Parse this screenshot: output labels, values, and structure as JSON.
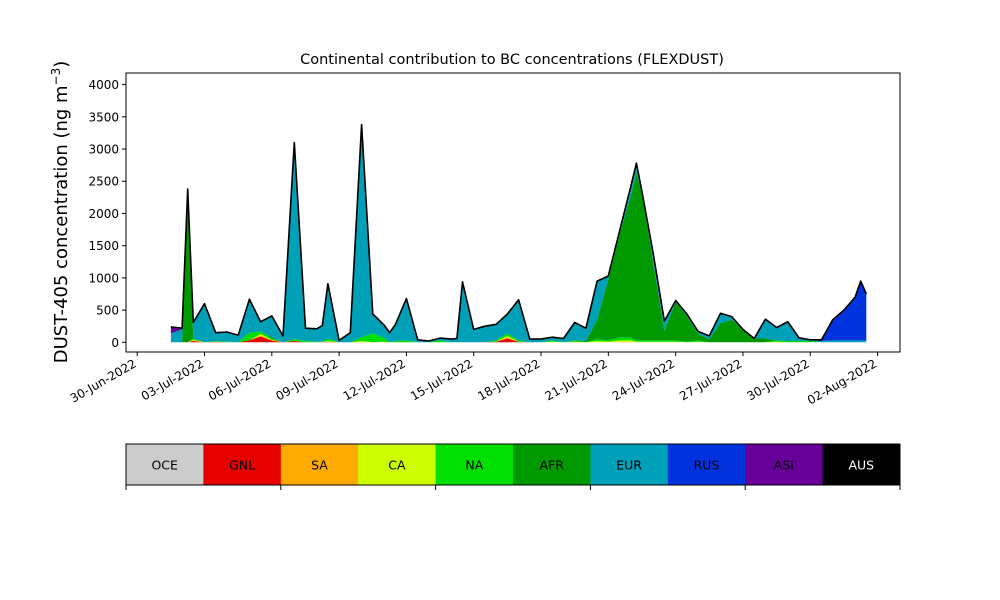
{
  "chart_data": {
    "type": "area",
    "title": "Continental contribution to BC concentrations (FLEXDUST)",
    "ylabel": "DUST-405 concentration (ng m",
    "ylabel_unit_exp": "−3",
    "ylabel_close": ")",
    "ylim": [
      -150,
      4180
    ],
    "yticks": [
      0,
      500,
      1000,
      1500,
      2000,
      2500,
      3000,
      3500,
      4000
    ],
    "xlim": [
      "2022-06-29T12:00",
      "2022-08-03T00:00"
    ],
    "xticks": [
      "30-Jun-2022",
      "03-Jul-2022",
      "06-Jul-2022",
      "09-Jul-2022",
      "12-Jul-2022",
      "15-Jul-2022",
      "18-Jul-2022",
      "21-Jul-2022",
      "24-Jul-2022",
      "27-Jul-2022",
      "30-Jul-2022",
      "02-Aug-2022"
    ],
    "xtick_dates": [
      "2022-06-30",
      "2022-07-03",
      "2022-07-06",
      "2022-07-09",
      "2022-07-12",
      "2022-07-15",
      "2022-07-18",
      "2022-07-21",
      "2022-07-24",
      "2022-07-27",
      "2022-07-30",
      "2022-08-02"
    ],
    "grid": false,
    "legend_position": "colorbar below chart",
    "x": [
      "2022-07-01T12:00",
      "2022-07-02T00:00",
      "2022-07-02T06:00",
      "2022-07-02T12:00",
      "2022-07-03T00:00",
      "2022-07-03T12:00",
      "2022-07-04T00:00",
      "2022-07-04T12:00",
      "2022-07-05T00:00",
      "2022-07-05T12:00",
      "2022-07-06T00:00",
      "2022-07-06T12:00",
      "2022-07-07T00:00",
      "2022-07-07T12:00",
      "2022-07-08T00:00",
      "2022-07-08T06:00",
      "2022-07-08T12:00",
      "2022-07-09T00:00",
      "2022-07-09T12:00",
      "2022-07-10T00:00",
      "2022-07-10T12:00",
      "2022-07-11T00:00",
      "2022-07-11T06:00",
      "2022-07-11T12:00",
      "2022-07-12T00:00",
      "2022-07-12T12:00",
      "2022-07-13T00:00",
      "2022-07-13T12:00",
      "2022-07-14T00:00",
      "2022-07-14T06:00",
      "2022-07-14T12:00",
      "2022-07-15T00:00",
      "2022-07-15T12:00",
      "2022-07-16T00:00",
      "2022-07-16T12:00",
      "2022-07-17T00:00",
      "2022-07-17T12:00",
      "2022-07-18T00:00",
      "2022-07-18T12:00",
      "2022-07-19T00:00",
      "2022-07-19T12:00",
      "2022-07-20T00:00",
      "2022-07-20T12:00",
      "2022-07-21T00:00",
      "2022-07-21T12:00",
      "2022-07-22T00:00",
      "2022-07-22T06:00",
      "2022-07-22T12:00",
      "2022-07-23T00:00",
      "2022-07-23T12:00",
      "2022-07-24T00:00",
      "2022-07-24T12:00",
      "2022-07-25T00:00",
      "2022-07-25T12:00",
      "2022-07-26T00:00",
      "2022-07-26T12:00",
      "2022-07-27T00:00",
      "2022-07-27T12:00",
      "2022-07-28T00:00",
      "2022-07-28T12:00",
      "2022-07-29T00:00",
      "2022-07-29T12:00",
      "2022-07-30T00:00",
      "2022-07-30T12:00",
      "2022-07-31T00:00",
      "2022-07-31T12:00",
      "2022-08-01T00:00",
      "2022-08-01T06:00",
      "2022-08-01T12:00"
    ],
    "series": [
      {
        "name": "OCE",
        "color": "#cccccc",
        "values": [
          0,
          0,
          0,
          0,
          0,
          0,
          0,
          0,
          0,
          0,
          0,
          0,
          0,
          0,
          0,
          0,
          0,
          0,
          0,
          0,
          0,
          0,
          0,
          0,
          0,
          0,
          0,
          0,
          0,
          0,
          0,
          0,
          0,
          0,
          0,
          0,
          0,
          0,
          0,
          0,
          0,
          0,
          0,
          0,
          0,
          0,
          0,
          0,
          0,
          0,
          0,
          0,
          0,
          0,
          0,
          0,
          0,
          0,
          0,
          0,
          0,
          0,
          0,
          0,
          0,
          0,
          0,
          0,
          0
        ]
      },
      {
        "name": "GNL",
        "color": "#e60000",
        "values": [
          0,
          0,
          0,
          20,
          0,
          10,
          0,
          0,
          30,
          90,
          30,
          0,
          20,
          0,
          0,
          0,
          10,
          0,
          0,
          0,
          0,
          0,
          0,
          0,
          0,
          0,
          0,
          0,
          0,
          0,
          0,
          0,
          0,
          10,
          60,
          10,
          0,
          0,
          0,
          0,
          0,
          0,
          0,
          0,
          0,
          0,
          0,
          0,
          0,
          0,
          0,
          0,
          0,
          0,
          0,
          0,
          0,
          0,
          0,
          0,
          0,
          0,
          0,
          0,
          0,
          0,
          0,
          0,
          0
        ]
      },
      {
        "name": "SA",
        "color": "#ffaa00",
        "values": [
          0,
          0,
          0,
          10,
          0,
          0,
          0,
          0,
          0,
          20,
          0,
          0,
          0,
          0,
          0,
          0,
          0,
          0,
          0,
          0,
          0,
          0,
          0,
          0,
          0,
          0,
          0,
          0,
          0,
          0,
          0,
          0,
          0,
          0,
          20,
          0,
          0,
          0,
          0,
          0,
          0,
          0,
          0,
          0,
          10,
          10,
          0,
          0,
          0,
          0,
          0,
          0,
          0,
          0,
          0,
          0,
          0,
          0,
          0,
          0,
          0,
          0,
          0,
          0,
          0,
          0,
          0,
          0,
          0
        ]
      },
      {
        "name": "CA",
        "color": "#ccff00",
        "values": [
          0,
          0,
          0,
          10,
          0,
          0,
          0,
          0,
          0,
          20,
          10,
          0,
          0,
          0,
          0,
          0,
          10,
          0,
          0,
          20,
          0,
          10,
          0,
          0,
          0,
          0,
          0,
          0,
          0,
          0,
          0,
          0,
          0,
          0,
          20,
          0,
          0,
          0,
          10,
          0,
          10,
          0,
          20,
          10,
          20,
          20,
          10,
          10,
          10,
          10,
          10,
          0,
          10,
          0,
          0,
          0,
          0,
          0,
          0,
          10,
          0,
          0,
          0,
          0,
          0,
          0,
          0,
          0,
          0
        ]
      },
      {
        "name": "NA",
        "color": "#00e000",
        "values": [
          0,
          0,
          0,
          20,
          0,
          10,
          10,
          0,
          120,
          40,
          20,
          0,
          30,
          20,
          10,
          10,
          40,
          0,
          0,
          60,
          140,
          60,
          0,
          20,
          30,
          0,
          0,
          30,
          0,
          0,
          0,
          0,
          0,
          20,
          40,
          20,
          0,
          0,
          20,
          0,
          20,
          0,
          30,
          20,
          50,
          40,
          20,
          20,
          20,
          20,
          20,
          10,
          20,
          0,
          0,
          0,
          0,
          0,
          0,
          20,
          20,
          20,
          20,
          0,
          0,
          0,
          0,
          0,
          0
        ]
      },
      {
        "name": "AFR",
        "color": "#009900",
        "values": [
          0,
          0,
          2200,
          0,
          0,
          0,
          0,
          0,
          0,
          0,
          20,
          0,
          0,
          0,
          0,
          0,
          0,
          0,
          0,
          0,
          0,
          0,
          0,
          0,
          0,
          0,
          0,
          0,
          0,
          0,
          0,
          0,
          0,
          0,
          0,
          0,
          0,
          0,
          0,
          0,
          0,
          20,
          300,
          950,
          1600,
          2200,
          2600,
          2300,
          1200,
          150,
          600,
          400,
          100,
          50,
          300,
          350,
          200,
          60,
          60,
          0,
          0,
          0,
          0,
          0,
          0,
          0,
          0,
          0,
          0
        ]
      },
      {
        "name": "EUR",
        "color": "#00a0b8",
        "values": [
          140,
          200,
          0,
          250,
          600,
          130,
          150,
          110,
          520,
          150,
          330,
          100,
          3050,
          200,
          200,
          250,
          850,
          30,
          150,
          3300,
          300,
          200,
          150,
          250,
          650,
          40,
          20,
          35,
          50,
          60,
          940,
          200,
          250,
          250,
          300,
          630,
          50,
          50,
          50,
          60,
          280,
          200,
          600,
          50,
          50,
          150,
          150,
          10,
          150,
          150,
          20,
          30,
          40,
          50,
          150,
          50,
          0,
          0,
          300,
          200,
          300,
          50,
          20,
          20,
          30,
          30,
          30,
          30,
          30
        ]
      },
      {
        "name": "RUS",
        "color": "#0033dd",
        "values": [
          0,
          0,
          0,
          0,
          0,
          0,
          0,
          0,
          0,
          0,
          0,
          0,
          0,
          0,
          0,
          0,
          0,
          0,
          0,
          0,
          0,
          0,
          0,
          0,
          0,
          0,
          0,
          0,
          0,
          0,
          0,
          0,
          0,
          0,
          0,
          0,
          0,
          0,
          0,
          0,
          0,
          0,
          0,
          0,
          0,
          0,
          0,
          0,
          0,
          0,
          0,
          0,
          0,
          0,
          0,
          0,
          0,
          0,
          0,
          0,
          0,
          0,
          0,
          0,
          300,
          450,
          650,
          900,
          700
        ]
      },
      {
        "name": "ASI",
        "color": "#660099",
        "values": [
          100,
          20,
          180,
          0,
          0,
          0,
          0,
          0,
          0,
          0,
          0,
          0,
          0,
          0,
          0,
          0,
          0,
          0,
          0,
          0,
          0,
          0,
          0,
          0,
          0,
          0,
          0,
          0,
          0,
          0,
          0,
          0,
          0,
          0,
          0,
          0,
          0,
          0,
          0,
          0,
          0,
          0,
          0,
          0,
          0,
          0,
          0,
          0,
          0,
          0,
          0,
          0,
          0,
          0,
          0,
          0,
          0,
          0,
          0,
          0,
          0,
          0,
          0,
          20,
          20,
          20,
          20,
          20,
          20
        ]
      },
      {
        "name": "AUS",
        "color": "#000000",
        "values": [
          0,
          0,
          0,
          0,
          0,
          0,
          0,
          0,
          0,
          0,
          0,
          0,
          0,
          0,
          0,
          0,
          0,
          0,
          0,
          0,
          0,
          0,
          0,
          0,
          0,
          0,
          0,
          0,
          0,
          0,
          0,
          0,
          0,
          0,
          0,
          0,
          0,
          0,
          0,
          0,
          0,
          0,
          0,
          0,
          0,
          0,
          0,
          0,
          0,
          0,
          0,
          0,
          0,
          0,
          0,
          0,
          0,
          0,
          0,
          0,
          0,
          0,
          0,
          0,
          0,
          0,
          0,
          0,
          0
        ]
      }
    ]
  },
  "colorbar": {
    "label_colors": [
      "#000000",
      "#000000",
      "#000000",
      "#000000",
      "#000000",
      "#000000",
      "#000000",
      "#000000",
      "#000000",
      "#ffffff"
    ]
  },
  "colors": {
    "total_line": "#000000",
    "axes": "#000000",
    "background": "#ffffff"
  }
}
